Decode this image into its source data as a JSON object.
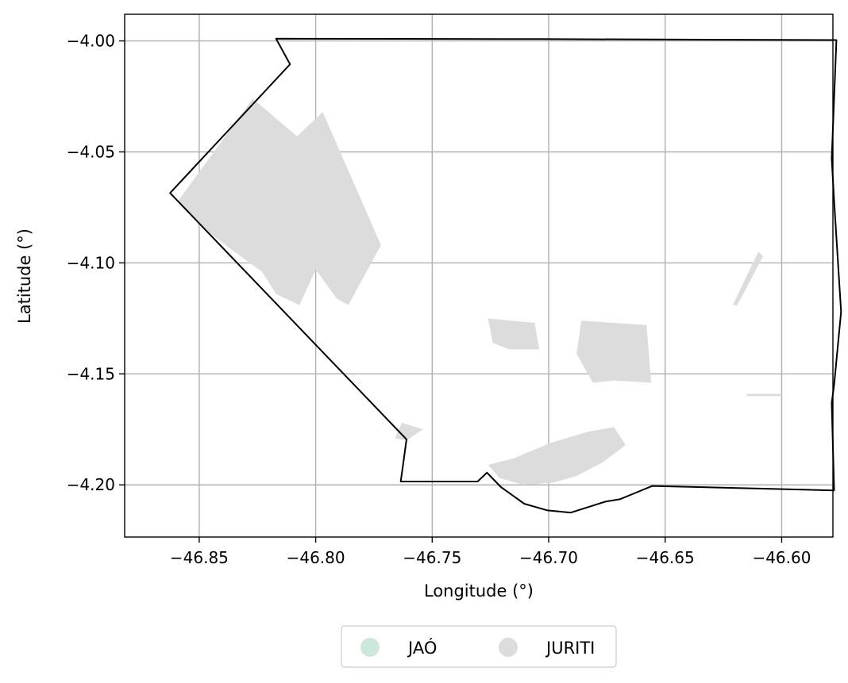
{
  "chart_data": {
    "type": "map",
    "xlabel": "Longitude (°)",
    "ylabel": "Latitude (°)",
    "xlim": [
      -46.882,
      -46.578
    ],
    "ylim": [
      -4.2235,
      -3.988
    ],
    "x_ticks": [
      -46.85,
      -46.8,
      -46.75,
      -46.7,
      -46.65,
      -46.6
    ],
    "x_tick_labels": [
      "−46.85",
      "−46.80",
      "−46.75",
      "−46.70",
      "−46.65",
      "−46.60"
    ],
    "y_ticks": [
      -4.0,
      -4.05,
      -4.1,
      -4.15,
      -4.2
    ],
    "y_tick_labels": [
      "−4.00",
      "−4.05",
      "−4.10",
      "−4.15",
      "−4.20"
    ],
    "grid": true,
    "legend_placement": "bottom-center",
    "legend": [
      {
        "label": "JAÓ",
        "color": "#cce8dd"
      },
      {
        "label": "JURITI",
        "color": "#dcdcdc"
      }
    ],
    "boundary": {
      "color": "#000000",
      "coords": [
        [
          -46.817,
          -3.999
        ],
        [
          -46.7035,
          -3.9992
        ],
        [
          -46.5765,
          -3.9996
        ],
        [
          -46.5785,
          -4.053
        ],
        [
          -46.5775,
          -4.072
        ],
        [
          -46.5745,
          -4.122
        ],
        [
          -46.5775,
          -4.155
        ],
        [
          -46.5785,
          -4.163
        ],
        [
          -46.5775,
          -4.2025
        ],
        [
          -46.6555,
          -4.2005
        ],
        [
          -46.6625,
          -4.2035
        ],
        [
          -46.6695,
          -4.2065
        ],
        [
          -46.6755,
          -4.2075
        ],
        [
          -46.6815,
          -4.2095
        ],
        [
          -46.6905,
          -4.2125
        ],
        [
          -46.7005,
          -4.2115
        ],
        [
          -46.7105,
          -4.2085
        ],
        [
          -46.7205,
          -4.201
        ],
        [
          -46.7265,
          -4.1945
        ],
        [
          -46.7305,
          -4.1985
        ],
        [
          -46.7635,
          -4.1985
        ],
        [
          -46.761,
          -4.1795
        ],
        [
          -46.8625,
          -4.0685
        ],
        [
          -46.811,
          -4.0105
        ],
        [
          -46.817,
          -3.999
        ]
      ]
    },
    "areas": [
      {
        "name": "JURITI",
        "color": "#dcdcdc",
        "coords": [
          [
            -46.827,
            -4.026
          ],
          [
            -46.808,
            -4.043
          ],
          [
            -46.797,
            -4.032
          ],
          [
            -46.772,
            -4.092
          ],
          [
            -46.786,
            -4.119
          ],
          [
            -46.791,
            -4.116
          ],
          [
            -46.8,
            -4.103
          ],
          [
            -46.807,
            -4.119
          ],
          [
            -46.817,
            -4.114
          ],
          [
            -46.823,
            -4.104
          ],
          [
            -46.831,
            -4.098
          ],
          [
            -46.845,
            -4.087
          ],
          [
            -46.859,
            -4.072
          ]
        ]
      },
      {
        "name": "JURITI",
        "color": "#dcdcdc",
        "coords": [
          [
            -46.726,
            -4.125
          ],
          [
            -46.706,
            -4.127
          ],
          [
            -46.704,
            -4.139
          ],
          [
            -46.717,
            -4.139
          ],
          [
            -46.724,
            -4.136
          ]
        ]
      },
      {
        "name": "JURITI",
        "color": "#dcdcdc",
        "coords": [
          [
            -46.686,
            -4.126
          ],
          [
            -46.658,
            -4.128
          ],
          [
            -46.656,
            -4.154
          ],
          [
            -46.672,
            -4.153
          ],
          [
            -46.681,
            -4.154
          ],
          [
            -46.688,
            -4.141
          ]
        ]
      },
      {
        "name": "JURITI",
        "color": "#dcdcdc",
        "coords": [
          [
            -46.726,
            -4.191
          ],
          [
            -46.715,
            -4.188
          ],
          [
            -46.699,
            -4.181
          ],
          [
            -46.683,
            -4.176
          ],
          [
            -46.672,
            -4.174
          ],
          [
            -46.667,
            -4.182
          ],
          [
            -46.677,
            -4.19
          ],
          [
            -46.688,
            -4.196
          ],
          [
            -46.698,
            -4.199
          ],
          [
            -46.711,
            -4.2
          ],
          [
            -46.721,
            -4.197
          ]
        ]
      },
      {
        "name": "JURITI",
        "color": "#dcdcdc",
        "coords": [
          [
            -46.763,
            -4.172
          ],
          [
            -46.766,
            -4.179
          ],
          [
            -46.761,
            -4.18
          ],
          [
            -46.754,
            -4.175
          ]
        ]
      },
      {
        "name": "JURITI",
        "color": "#dcdcdc",
        "coords": [
          [
            -46.61,
            -4.095
          ],
          [
            -46.621,
            -4.119
          ],
          [
            -46.619,
            -4.119
          ],
          [
            -46.608,
            -4.097
          ]
        ]
      },
      {
        "name": "JURITI",
        "color": "#dcdcdc",
        "coords": [
          [
            -46.615,
            -4.159
          ],
          [
            -46.6,
            -4.159
          ],
          [
            -46.6,
            -4.16
          ],
          [
            -46.615,
            -4.16
          ]
        ]
      }
    ]
  }
}
